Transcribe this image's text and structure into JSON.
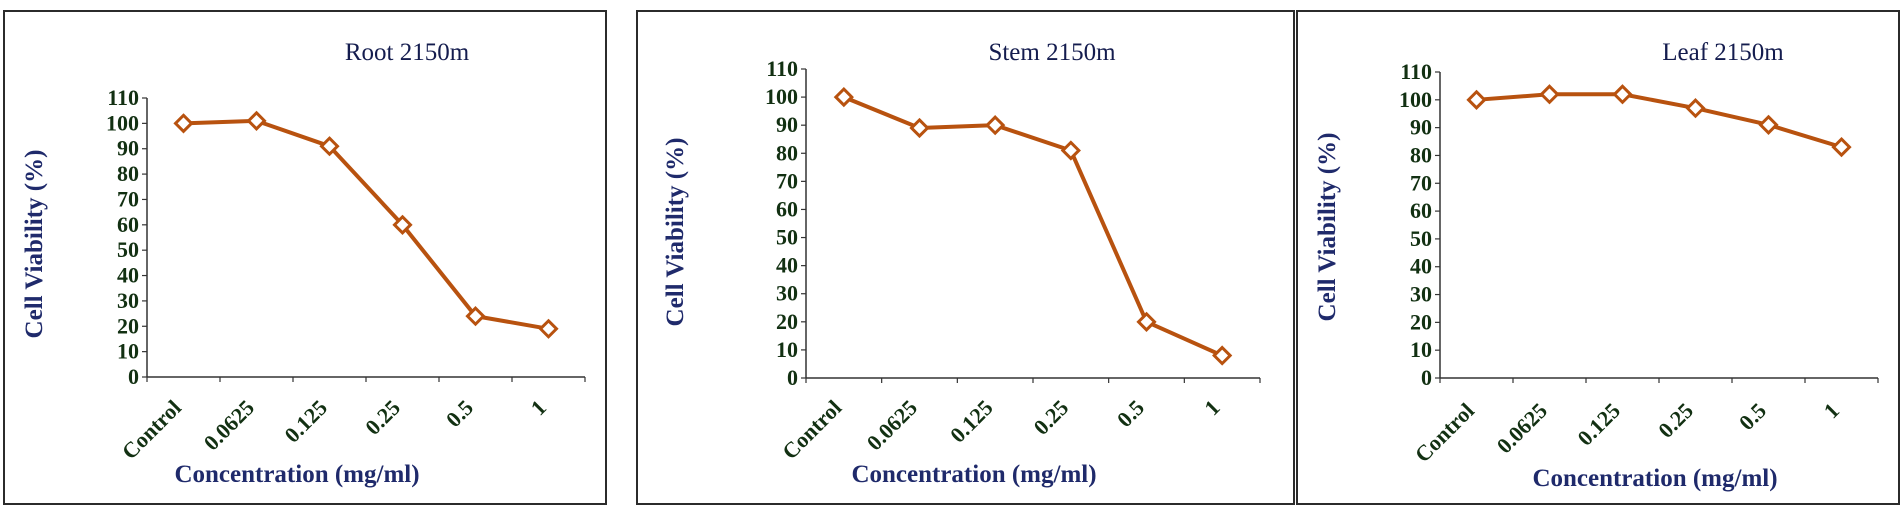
{
  "chart_data": [
    {
      "type": "line",
      "title": "Root 2150m",
      "xlabel": "Concentration (mg/ml)",
      "ylabel": "Cell Viability (%)",
      "categories": [
        "Control",
        "0.0625",
        "0.125",
        "0.25",
        "0.5",
        "1"
      ],
      "ylim": [
        0,
        110
      ],
      "yticks": [
        0,
        10,
        20,
        30,
        40,
        50,
        60,
        70,
        80,
        90,
        100,
        110
      ],
      "grid": false,
      "series": [
        {
          "values": [
            100,
            101,
            91,
            60,
            24,
            19
          ],
          "color": "#b8520f",
          "marker": "diamond"
        }
      ]
    },
    {
      "type": "line",
      "title": "Stem 2150m",
      "xlabel": "Concentration (mg/ml)",
      "ylabel": "Cell Viability (%)",
      "categories": [
        "Control",
        "0.0625",
        "0.125",
        "0.25",
        "0.5",
        "1"
      ],
      "ylim": [
        0,
        110
      ],
      "yticks": [
        0,
        10,
        20,
        30,
        40,
        50,
        60,
        70,
        80,
        90,
        100,
        110
      ],
      "grid": false,
      "series": [
        {
          "values": [
            100,
            89,
            90,
            81,
            20,
            8
          ],
          "color": "#b8520f",
          "marker": "diamond"
        }
      ]
    },
    {
      "type": "line",
      "title": "Leaf 2150m",
      "xlabel": "Concentration (mg/ml)",
      "ylabel": "Cell Viability (%)",
      "categories": [
        "Control",
        "0.0625",
        "0.125",
        "0.25",
        "0.5",
        "1"
      ],
      "ylim": [
        0,
        110
      ],
      "yticks": [
        0,
        10,
        20,
        30,
        40,
        50,
        60,
        70,
        80,
        90,
        100,
        110
      ],
      "grid": false,
      "series": [
        {
          "values": [
            100,
            102,
            102,
            97,
            91,
            83
          ],
          "color": "#b8520f",
          "marker": "diamond"
        }
      ]
    }
  ]
}
